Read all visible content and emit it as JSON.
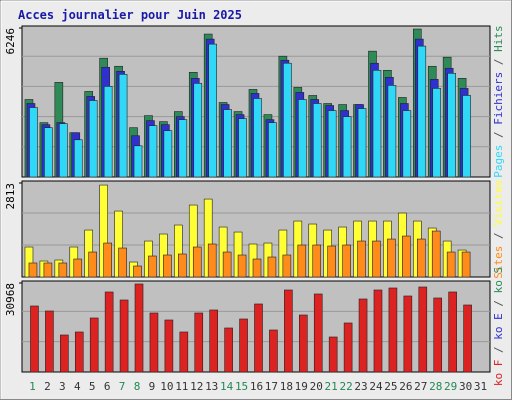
{
  "chart_data": [
    {
      "type": "bar",
      "title": "Acces journalier pour Juin 2025",
      "ylim": [
        0,
        6246
      ],
      "yticks": [
        6246
      ],
      "legend_separator": " / ",
      "series": [
        {
          "name": "Hits",
          "color": "#2e8b57",
          "values": [
            3249,
            2279,
            3967,
            1857,
            3587,
            4980,
            4642,
            2068,
            2574,
            2321,
            2743,
            4389,
            5992,
            3123,
            2743,
            3671,
            2616,
            5064,
            3756,
            3418,
            3081,
            3038,
            3038,
            5275,
            4473,
            3334,
            6203,
            4642,
            5022,
            4136,
            0
          ]
        },
        {
          "name": "Fichiers",
          "color": "#3030d0",
          "values": [
            3081,
            2194,
            2280,
            1857,
            3376,
            4600,
            4431,
            1730,
            2363,
            2194,
            2532,
            4136,
            5781,
            3038,
            2616,
            3503,
            2405,
            4895,
            3545,
            3249,
            2996,
            2785,
            3038,
            4769,
            4178,
            3081,
            5781,
            4093,
            4558,
            3714,
            0
          ]
        },
        {
          "name": "Pages",
          "color": "#30d8f8",
          "values": [
            2912,
            2068,
            2237,
            1561,
            3207,
            3798,
            4304,
            1308,
            2152,
            1941,
            2405,
            3925,
            5570,
            2827,
            2448,
            3292,
            2279,
            4769,
            3249,
            3081,
            2785,
            2532,
            2870,
            4473,
            3840,
            2785,
            5486,
            3714,
            4347,
            3418,
            0
          ]
        }
      ]
    },
    {
      "type": "bar",
      "ylim": [
        0,
        2813
      ],
      "yticks": [
        2813
      ],
      "series": [
        {
          "name": "Visites",
          "color": "#ffff33",
          "values": [
            897,
            478,
            508,
            897,
            1405,
            2751,
            1973,
            448,
            1076,
            1286,
            1555,
            2153,
            2332,
            1495,
            1345,
            987,
            1016,
            1405,
            1674,
            1585,
            1405,
            1495,
            1674,
            1674,
            1674,
            1914,
            1674,
            1465,
            1076,
            807,
            0
          ]
        },
        {
          "name": "Sites",
          "color": "#ff8c1a",
          "values": [
            419,
            419,
            419,
            538,
            747,
            1016,
            867,
            329,
            628,
            658,
            688,
            897,
            987,
            747,
            658,
            538,
            598,
            658,
            957,
            957,
            927,
            957,
            1076,
            1076,
            1136,
            1226,
            1136,
            1375,
            747,
            747,
            0
          ]
        }
      ]
    },
    {
      "type": "bar",
      "ylim": [
        0,
        30968
      ],
      "yticks": [
        30968
      ],
      "legend_extra": [
        {
          "name": "ko S",
          "color": "#2e8b57"
        },
        {
          "name": "ko E",
          "color": "#3030d0"
        }
      ],
      "series": [
        {
          "name": "ko F",
          "color": "#dd2222",
          "values": [
            22968,
            21228,
            12876,
            13920,
            18792,
            27840,
            25056,
            30624,
            20532,
            18096,
            13920,
            20532,
            21576,
            15312,
            18444,
            23664,
            14616,
            28536,
            19836,
            27144,
            12180,
            17052,
            25404,
            28536,
            29232,
            26448,
            29580,
            25752,
            27840,
            23316,
            0
          ]
        }
      ],
      "categories": [
        "1",
        "2",
        "3",
        "4",
        "5",
        "6",
        "7",
        "8",
        "9",
        "10",
        "11",
        "12",
        "13",
        "14",
        "15",
        "16",
        "17",
        "18",
        "19",
        "20",
        "21",
        "22",
        "23",
        "24",
        "25",
        "26",
        "27",
        "28",
        "29",
        "30",
        "31"
      ],
      "label_colors": [
        "#228855",
        "#333333",
        "#333333",
        "#333333",
        "#333333",
        "#333333",
        "#228855",
        "#228855",
        "#333333",
        "#333333",
        "#333333",
        "#333333",
        "#333333",
        "#228855",
        "#228855",
        "#333333",
        "#333333",
        "#333333",
        "#333333",
        "#333333",
        "#228855",
        "#228855",
        "#333333",
        "#333333",
        "#333333",
        "#333333",
        "#333333",
        "#228855",
        "#228855",
        "#333333",
        "#333333"
      ]
    }
  ]
}
